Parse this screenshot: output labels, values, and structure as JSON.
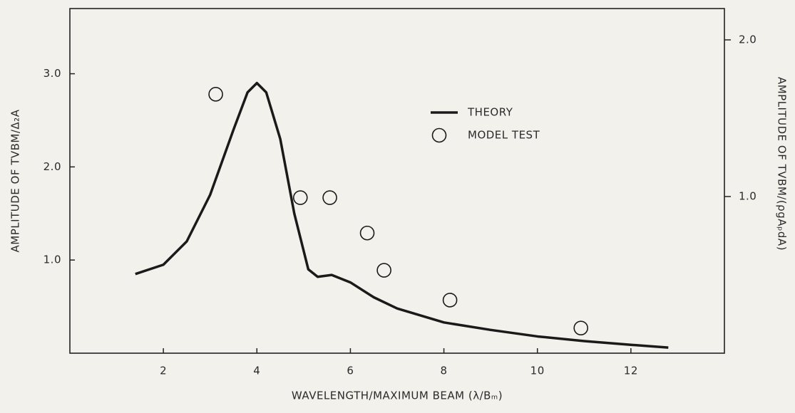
{
  "chart_data": {
    "type": "line",
    "xlabel": "WAVELENGTH/MAXIMUM BEAM (λ/Bₘ)",
    "ylabel": "AMPLITUDE OF TVBM/Δ₂A",
    "y2label": "AMPLITUDE OF TVBM/(ρgAₚdA)",
    "xlim": [
      0,
      14
    ],
    "ylim": [
      0,
      3.7
    ],
    "y2lim": [
      0,
      2.2
    ],
    "xticks": [
      2,
      4,
      6,
      8,
      10,
      12
    ],
    "yticks": [
      {
        "value": 1,
        "label": "1.0"
      },
      {
        "value": 2,
        "label": "2.0"
      },
      {
        "value": 3,
        "label": "3.0"
      }
    ],
    "y2ticks": [
      {
        "value": 1,
        "label": "1.0"
      },
      {
        "value": 2,
        "label": "2.0"
      }
    ],
    "series": [
      {
        "name": "THEORY",
        "type": "line",
        "color": "#1a1a1a",
        "x": [
          1.4,
          2.0,
          2.5,
          3.0,
          3.5,
          3.8,
          4.0,
          4.2,
          4.5,
          4.8,
          5.1,
          5.3,
          5.6,
          6.0,
          6.5,
          7.0,
          8.0,
          9.0,
          10.0,
          11.0,
          12.0,
          12.8
        ],
        "values": [
          0.85,
          0.95,
          1.2,
          1.7,
          2.4,
          2.8,
          2.9,
          2.8,
          2.3,
          1.5,
          0.9,
          0.82,
          0.84,
          0.76,
          0.6,
          0.48,
          0.33,
          0.25,
          0.18,
          0.13,
          0.09,
          0.06
        ]
      },
      {
        "name": "MODEL TEST",
        "type": "scatter",
        "color": "#1a1a1a",
        "x": [
          3.12,
          4.93,
          5.56,
          6.36,
          6.72,
          8.13,
          10.93
        ],
        "values": [
          2.78,
          1.67,
          1.67,
          1.29,
          0.89,
          0.57,
          0.27
        ]
      }
    ]
  }
}
